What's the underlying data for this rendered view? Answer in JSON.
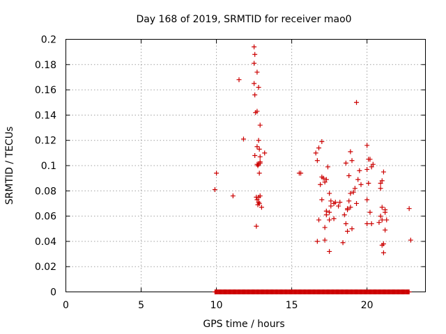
{
  "chart_data": {
    "type": "scatter",
    "title": "Day 168 of 2019, SRMTID for receiver mao0",
    "xlabel": "GPS time / hours",
    "ylabel": "SRMTID / TECUs",
    "xlim": [
      0,
      23.88
    ],
    "ylim": [
      0,
      0.2
    ],
    "xticks": [
      0,
      5,
      10,
      15,
      20
    ],
    "xtick_labels": [
      "0",
      "5",
      "10",
      "15",
      "20"
    ],
    "yticks": [
      0,
      0.02,
      0.04,
      0.06,
      0.08,
      0.1,
      0.12,
      0.14,
      0.16,
      0.18,
      0.2
    ],
    "ytick_labels": [
      "0",
      "0.02",
      "0.04",
      "0.06",
      "0.08",
      "0.1",
      "0.12",
      "0.14",
      "0.16",
      "0.18",
      "0.2"
    ],
    "grid": true,
    "legend": "none",
    "marker": "+",
    "series": [
      {
        "name": "SRMTID",
        "color": "#cc0000",
        "x": [
          9.9,
          10.0,
          11.1,
          11.5,
          11.8,
          12.5,
          12.55,
          12.5,
          12.5,
          12.7,
          12.8,
          12.55,
          12.6,
          12.7,
          12.9,
          12.8,
          12.85,
          12.9,
          12.7,
          12.8,
          12.55,
          12.75,
          12.9,
          12.85,
          13.2,
          12.9,
          12.8,
          12.85,
          12.8,
          12.7,
          12.75,
          12.65,
          12.7,
          12.9,
          13.0,
          12.65,
          15.5,
          15.6,
          16.6,
          16.8,
          17.0,
          16.7,
          16.9,
          17.1,
          17.2,
          17.4,
          16.8,
          17.0,
          17.3,
          17.6,
          17.5,
          17.0,
          17.3,
          17.5,
          17.9,
          18.2,
          17.8,
          17.6,
          18.1,
          17.3,
          17.8,
          17.5,
          17.2,
          16.7,
          17.2,
          18.4,
          17.5,
          18.7,
          19.3,
          18.9,
          19.0,
          19.5,
          18.6,
          18.8,
          18.9,
          19.1,
          19.4,
          19.2,
          19.6,
          18.8,
          19.3,
          18.7,
          18.9,
          19.0,
          18.6,
          18.5,
          18.7,
          20.0,
          20.2,
          20.1,
          20.0,
          20.3,
          20.1,
          20.0,
          20.2,
          20.3,
          20.0,
          20.4,
          20.9,
          21.0,
          21.1,
          20.9,
          21.0,
          20.8,
          21.2,
          20.9,
          21.0,
          21.3,
          21.1,
          21.2,
          21.0,
          21.1,
          21.2,
          22.8,
          22.9
        ],
        "y": [
          0.081,
          0.094,
          0.076,
          0.168,
          0.121,
          0.194,
          0.188,
          0.181,
          0.165,
          0.174,
          0.162,
          0.156,
          0.142,
          0.143,
          0.132,
          0.12,
          0.113,
          0.107,
          0.115,
          0.101,
          0.108,
          0.1,
          0.102,
          0.094,
          0.11,
          0.076,
          0.075,
          0.07,
          0.071,
          0.073,
          0.069,
          0.052,
          0.101,
          0.103,
          0.067,
          0.075,
          0.094,
          0.094,
          0.11,
          0.114,
          0.119,
          0.104,
          0.085,
          0.09,
          0.087,
          0.099,
          0.057,
          0.073,
          0.089,
          0.072,
          0.078,
          0.091,
          0.064,
          0.063,
          0.071,
          0.071,
          0.07,
          0.068,
          0.068,
          0.061,
          0.058,
          0.057,
          0.051,
          0.04,
          0.041,
          0.039,
          0.032,
          0.065,
          0.15,
          0.111,
          0.104,
          0.096,
          0.102,
          0.092,
          0.078,
          0.079,
          0.089,
          0.082,
          0.085,
          0.072,
          0.07,
          0.066,
          0.067,
          0.05,
          0.054,
          0.061,
          0.048,
          0.116,
          0.105,
          0.105,
          0.097,
          0.099,
          0.086,
          0.073,
          0.063,
          0.054,
          0.054,
          0.101,
          0.086,
          0.088,
          0.095,
          0.082,
          0.067,
          0.055,
          0.063,
          0.06,
          0.057,
          0.057,
          0.038,
          0.049,
          0.037,
          0.031,
          0.065,
          0.066,
          0.041
        ]
      },
      {
        "name": "SRMTID zero values",
        "color": "#cc0000",
        "x_range": [
          9.9,
          22.8
        ],
        "x_step": 0.05,
        "y_value": 0
      }
    ]
  }
}
